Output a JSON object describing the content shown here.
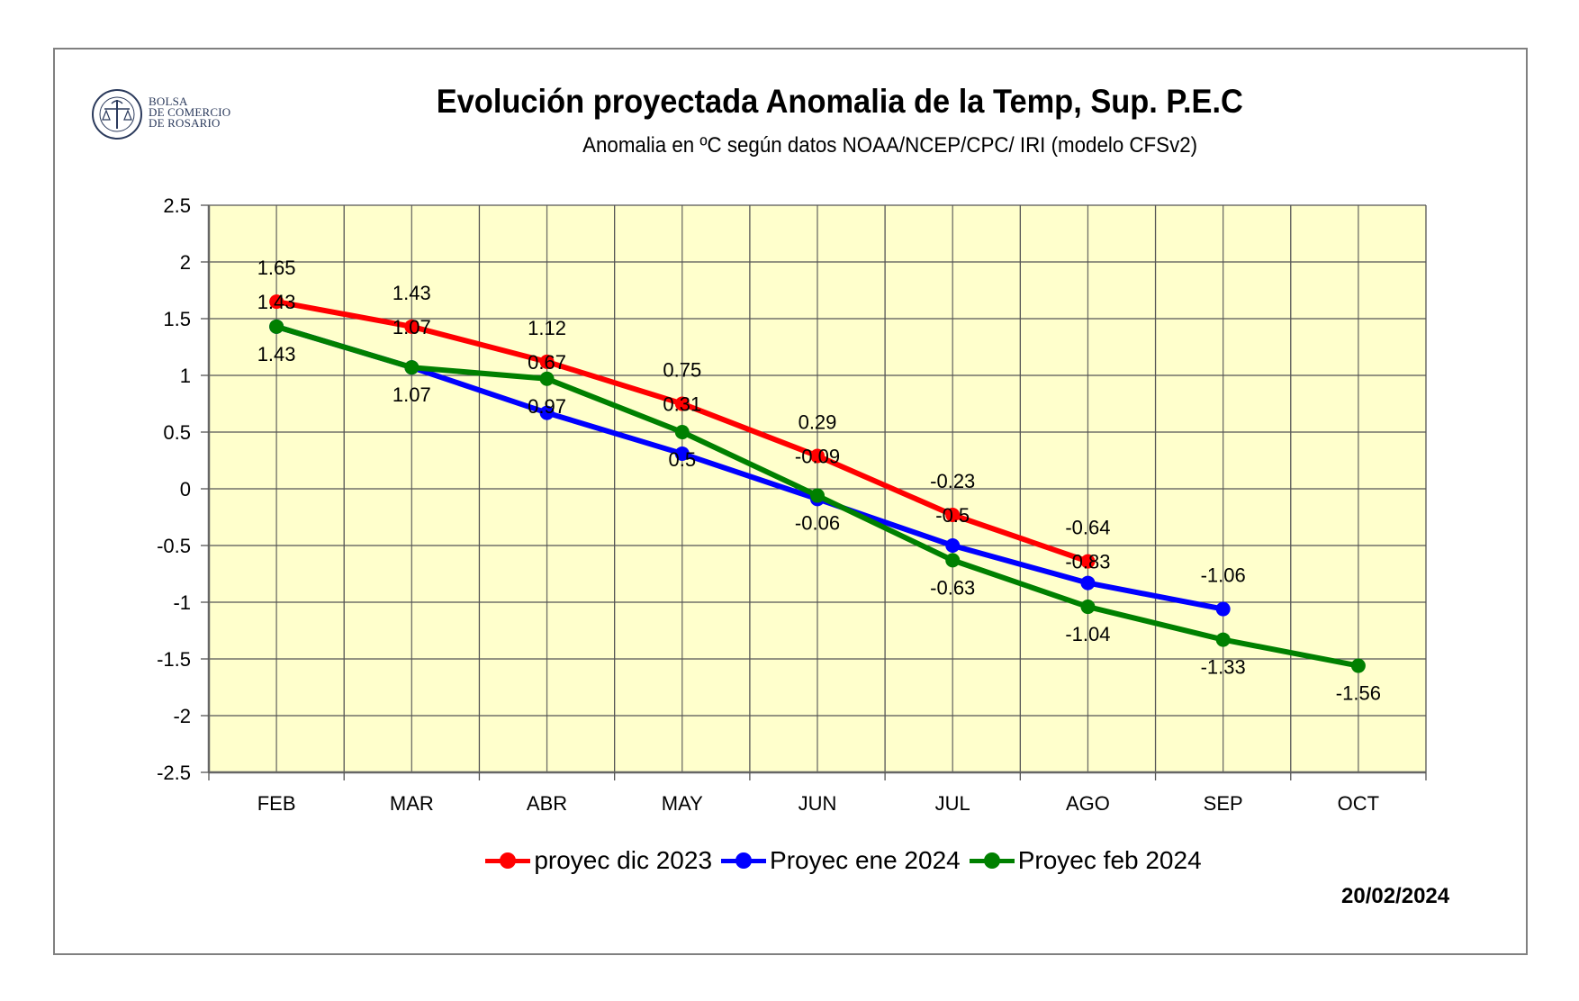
{
  "logo": {
    "line1": "BOLSA",
    "line2": "DE COMERCIO",
    "line3": "DE ROSARIO"
  },
  "date": "20/02/2024",
  "chart_data": {
    "type": "line",
    "title": "Evolución proyectada Anomalia de la Temp, Sup.  P.E.C",
    "subtitle": "Anomalia en ºC según datos NOAA/NCEP/CPC/ IRI (modelo CFSv2)",
    "xlabel": "",
    "ylabel": "",
    "categories": [
      "FEB",
      "MAR",
      "ABR",
      "MAY",
      "JUN",
      "JUL",
      "AGO",
      "SEP",
      "OCT"
    ],
    "ylim": [
      -2.5,
      2.5
    ],
    "yticks": [
      2.5,
      2,
      1.5,
      1,
      0.5,
      0,
      -0.5,
      -1,
      -1.5,
      -2,
      -2.5
    ],
    "ytick_labels": [
      "2.5",
      "2",
      "1.5",
      "1",
      "0.5",
      "0",
      "-0.5",
      "-1",
      "-1.5",
      "-2",
      "-2.5"
    ],
    "grid": true,
    "plot_background": "#ffffcc",
    "legend_position": "bottom",
    "series": [
      {
        "name": "proyec dic 2023",
        "color": "#ff0000",
        "values": [
          1.65,
          1.43,
          1.12,
          0.75,
          0.29,
          -0.23,
          -0.64,
          null,
          null
        ],
        "labels": [
          "1.65",
          "1.43",
          "1.12",
          "0.75",
          "0.29",
          "-0.23",
          "-0.64",
          null,
          null
        ]
      },
      {
        "name": "Proyec ene 2024",
        "color": "#0000ff",
        "values": [
          1.43,
          1.07,
          0.67,
          0.31,
          -0.09,
          -0.5,
          -0.83,
          -1.06,
          null
        ],
        "labels": [
          "1.43",
          "1.07",
          "0.67",
          "0.31",
          "-0.09",
          "-0.5",
          "-0.83",
          "-1.06",
          null
        ]
      },
      {
        "name": "Proyec feb 2024",
        "color": "#008000",
        "values": [
          1.43,
          1.07,
          0.97,
          0.5,
          -0.06,
          -0.63,
          -1.04,
          -1.33,
          -1.56
        ],
        "labels": [
          "1.43",
          "1.07",
          "0.97",
          "0.5",
          "-0.06",
          "-0.63",
          "-1.04",
          "-1.33",
          "-1.56"
        ]
      }
    ]
  }
}
